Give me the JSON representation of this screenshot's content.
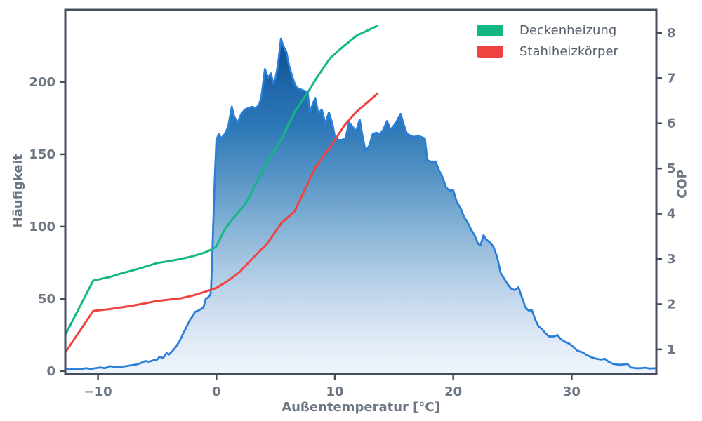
{
  "chart_data": {
    "type": "area+line",
    "title": "",
    "xlabel": "Außentemperatur [°C]",
    "ylabel_left": "Häufigkeit",
    "ylabel_right": "COP",
    "xlim": [
      -12.76,
      37.15
    ],
    "ylim_left": [
      -2,
      250
    ],
    "ylim_right": [
      0.455,
      8.51
    ],
    "x_ticks": [
      -10,
      0,
      10,
      20,
      30
    ],
    "y_left_ticks": [
      0,
      50,
      100,
      150,
      200
    ],
    "y_right_ticks": [
      1,
      2,
      3,
      4,
      5,
      6,
      7,
      8
    ],
    "grid": false,
    "legend_position": "top-right",
    "histogram": {
      "name": "Häufigkeit",
      "axis": "left",
      "line_color": "#2b7fd9",
      "gradient_stops": [
        [
          0,
          "#0a4480"
        ],
        [
          0.1,
          "#11518f"
        ],
        [
          0.22,
          "#2068ab"
        ],
        [
          0.32,
          "#2d78b7"
        ],
        [
          0.45,
          "#5492c4"
        ],
        [
          0.58,
          "#7fafd4"
        ],
        [
          0.7,
          "#a8c7e2"
        ],
        [
          0.82,
          "#cbdcee"
        ],
        [
          0.92,
          "#e2ecf7"
        ],
        [
          1,
          "#eff5fb"
        ]
      ],
      "points": [
        [
          -12.76,
          2
        ],
        [
          -12.4,
          1
        ],
        [
          -12.1,
          1.5
        ],
        [
          -11.8,
          1
        ],
        [
          -11.4,
          1.5
        ],
        [
          -11,
          2
        ],
        [
          -10.6,
          1.5
        ],
        [
          -10.2,
          2
        ],
        [
          -9.8,
          2.5
        ],
        [
          -9.4,
          2
        ],
        [
          -9,
          3.5
        ],
        [
          -8.7,
          3
        ],
        [
          -8.4,
          2.5
        ],
        [
          -8,
          3
        ],
        [
          -7.6,
          3.5
        ],
        [
          -7.2,
          4
        ],
        [
          -6.8,
          4.5
        ],
        [
          -6.4,
          5.5
        ],
        [
          -6,
          7
        ],
        [
          -5.7,
          6.5
        ],
        [
          -5.3,
          7.5
        ],
        [
          -5,
          8
        ],
        [
          -4.8,
          10
        ],
        [
          -4.5,
          9
        ],
        [
          -4.2,
          12.5
        ],
        [
          -4,
          11.5
        ],
        [
          -3.7,
          14
        ],
        [
          -3.4,
          17
        ],
        [
          -3.1,
          21
        ],
        [
          -2.8,
          26
        ],
        [
          -2.5,
          31
        ],
        [
          -2.2,
          36
        ],
        [
          -2,
          38
        ],
        [
          -1.8,
          41
        ],
        [
          -1.5,
          42
        ],
        [
          -1.3,
          43
        ],
        [
          -1.1,
          44
        ],
        [
          -0.9,
          50
        ],
        [
          -0.7,
          51
        ],
        [
          -0.5,
          53
        ],
        [
          -0.45,
          58
        ],
        [
          -0.35,
          80
        ],
        [
          -0.25,
          105
        ],
        [
          -0.15,
          130
        ],
        [
          -0.05,
          150
        ],
        [
          0,
          160
        ],
        [
          0.2,
          164
        ],
        [
          0.4,
          161
        ],
        [
          0.7,
          164
        ],
        [
          1,
          169
        ],
        [
          1.3,
          183
        ],
        [
          1.5,
          176
        ],
        [
          1.8,
          172
        ],
        [
          2.1,
          178
        ],
        [
          2.4,
          181
        ],
        [
          2.7,
          182
        ],
        [
          3,
          183
        ],
        [
          3.3,
          182
        ],
        [
          3.6,
          184
        ],
        [
          3.8,
          190
        ],
        [
          4.1,
          209
        ],
        [
          4.35,
          203
        ],
        [
          4.6,
          206
        ],
        [
          4.8,
          199
        ],
        [
          5,
          203
        ],
        [
          5.2,
          212
        ],
        [
          5.45,
          230
        ],
        [
          5.65,
          225
        ],
        [
          5.9,
          221
        ],
        [
          6.15,
          211
        ],
        [
          6.4,
          204
        ],
        [
          6.6,
          199
        ],
        [
          6.8,
          196
        ],
        [
          7.1,
          195
        ],
        [
          7.4,
          194
        ],
        [
          7.7,
          193
        ],
        [
          7.9,
          179
        ],
        [
          8.1,
          184
        ],
        [
          8.35,
          189
        ],
        [
          8.6,
          178
        ],
        [
          8.9,
          181
        ],
        [
          9.2,
          171
        ],
        [
          9.5,
          179
        ],
        [
          9.8,
          171
        ],
        [
          10,
          162
        ],
        [
          10.3,
          160
        ],
        [
          10.6,
          160
        ],
        [
          10.9,
          161
        ],
        [
          11.2,
          172
        ],
        [
          11.5,
          169
        ],
        [
          11.8,
          166
        ],
        [
          12.1,
          174
        ],
        [
          12.35,
          162
        ],
        [
          12.6,
          152
        ],
        [
          12.9,
          156
        ],
        [
          13.2,
          164
        ],
        [
          13.5,
          165
        ],
        [
          13.8,
          164
        ],
        [
          14.1,
          167
        ],
        [
          14.4,
          173
        ],
        [
          14.7,
          167
        ],
        [
          15,
          170
        ],
        [
          15.3,
          174
        ],
        [
          15.55,
          178
        ],
        [
          15.8,
          171
        ],
        [
          16.1,
          164
        ],
        [
          16.4,
          163
        ],
        [
          16.7,
          162
        ],
        [
          17,
          163
        ],
        [
          17.3,
          162
        ],
        [
          17.6,
          161
        ],
        [
          17.8,
          146
        ],
        [
          18.1,
          145
        ],
        [
          18.5,
          145
        ],
        [
          18.8,
          139
        ],
        [
          19.1,
          134
        ],
        [
          19.4,
          127
        ],
        [
          19.7,
          125
        ],
        [
          20,
          125
        ],
        [
          20.3,
          117
        ],
        [
          20.6,
          113
        ],
        [
          20.9,
          107
        ],
        [
          21.2,
          103
        ],
        [
          21.5,
          98
        ],
        [
          21.8,
          94
        ],
        [
          22.1,
          88
        ],
        [
          22.3,
          87
        ],
        [
          22.55,
          94
        ],
        [
          22.8,
          91
        ],
        [
          23.1,
          89
        ],
        [
          23.4,
          86
        ],
        [
          23.7,
          79
        ],
        [
          24,
          68
        ],
        [
          24.3,
          64
        ],
        [
          24.6,
          60
        ],
        [
          24.9,
          57
        ],
        [
          25.2,
          56
        ],
        [
          25.5,
          58
        ],
        [
          25.8,
          51
        ],
        [
          26.1,
          44
        ],
        [
          26.35,
          42
        ],
        [
          26.65,
          42
        ],
        [
          26.9,
          36
        ],
        [
          27.2,
          31
        ],
        [
          27.5,
          29
        ],
        [
          27.8,
          26
        ],
        [
          28.1,
          24
        ],
        [
          28.5,
          24
        ],
        [
          28.8,
          25
        ],
        [
          29.1,
          22
        ],
        [
          29.5,
          20
        ],
        [
          29.8,
          19
        ],
        [
          30.1,
          17
        ],
        [
          30.5,
          14
        ],
        [
          30.9,
          13
        ],
        [
          31.3,
          11
        ],
        [
          31.7,
          9.5
        ],
        [
          32.1,
          8.5
        ],
        [
          32.5,
          8
        ],
        [
          32.8,
          8.5
        ],
        [
          33.1,
          6.5
        ],
        [
          33.5,
          5
        ],
        [
          33.9,
          4.5
        ],
        [
          34.3,
          4.5
        ],
        [
          34.7,
          5
        ],
        [
          35,
          2.5
        ],
        [
          35.4,
          2
        ],
        [
          35.8,
          2
        ],
        [
          36.2,
          2.3
        ],
        [
          36.6,
          1.8
        ],
        [
          37.15,
          2
        ]
      ]
    },
    "series": [
      {
        "name": "Deckenheizung",
        "axis": "right",
        "color": "#12b783",
        "points": [
          [
            -12.76,
            1.32
          ],
          [
            -10.4,
            2.52
          ],
          [
            -9,
            2.6
          ],
          [
            -8,
            2.68
          ],
          [
            -7,
            2.75
          ],
          [
            -6,
            2.83
          ],
          [
            -5,
            2.91
          ],
          [
            -4,
            2.95
          ],
          [
            -3,
            3.0
          ],
          [
            -2,
            3.06
          ],
          [
            -1,
            3.14
          ],
          [
            -0.3,
            3.22
          ],
          [
            0,
            3.28
          ],
          [
            0.7,
            3.65
          ],
          [
            1.5,
            3.93
          ],
          [
            2.5,
            4.23
          ],
          [
            3.2,
            4.6
          ],
          [
            4,
            5.0
          ],
          [
            4.7,
            5.32
          ],
          [
            5.5,
            5.66
          ],
          [
            6.6,
            6.25
          ],
          [
            7.8,
            6.72
          ],
          [
            8.4,
            6.98
          ],
          [
            9.6,
            7.44
          ],
          [
            10.8,
            7.72
          ],
          [
            11.9,
            7.95
          ],
          [
            12.6,
            8.03
          ],
          [
            13.6,
            8.16
          ]
        ]
      },
      {
        "name": "Stahlheizkörper",
        "axis": "right",
        "color": "#ee4340",
        "points": [
          [
            -12.76,
            0.93
          ],
          [
            -10.4,
            1.85
          ],
          [
            -9,
            1.89
          ],
          [
            -8,
            1.93
          ],
          [
            -7,
            1.97
          ],
          [
            -6,
            2.02
          ],
          [
            -5,
            2.07
          ],
          [
            -4,
            2.1
          ],
          [
            -3,
            2.13
          ],
          [
            -2,
            2.19
          ],
          [
            -1,
            2.27
          ],
          [
            0,
            2.36
          ],
          [
            1,
            2.52
          ],
          [
            2,
            2.72
          ],
          [
            3,
            3.0
          ],
          [
            4.3,
            3.34
          ],
          [
            5.5,
            3.8
          ],
          [
            6.6,
            4.05
          ],
          [
            7.5,
            4.55
          ],
          [
            8.4,
            5.04
          ],
          [
            9.6,
            5.47
          ],
          [
            10.8,
            5.95
          ],
          [
            11.8,
            6.25
          ],
          [
            12.7,
            6.45
          ],
          [
            13.6,
            6.66
          ]
        ]
      }
    ]
  },
  "styles": {
    "background": "#ffffff",
    "spine_color": "#454d5c",
    "tick_label_color": "#6d7683",
    "axis_label_color": "#6d7683",
    "legend_text_color": "#565e6c"
  }
}
